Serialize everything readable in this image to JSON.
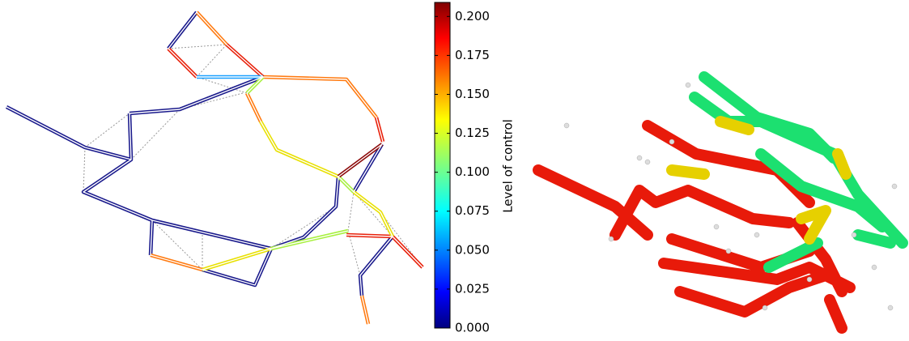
{
  "chart_data": {
    "type": "colorbar",
    "ylabel": "Level of control",
    "ylim": [
      0,
      0.209
    ],
    "yticks": [
      {
        "value": 0,
        "label": "0.000"
      },
      {
        "value": 0.025,
        "label": "0.025"
      },
      {
        "value": 0.05,
        "label": "0.050"
      },
      {
        "value": 0.075,
        "label": "0.075"
      },
      {
        "value": 0.1,
        "label": "0.100"
      },
      {
        "value": 0.125,
        "label": "0.125"
      },
      {
        "value": 0.15,
        "label": "0.150"
      },
      {
        "value": 0.175,
        "label": "0.175"
      },
      {
        "value": 0.2,
        "label": "0.200"
      }
    ]
  }
}
